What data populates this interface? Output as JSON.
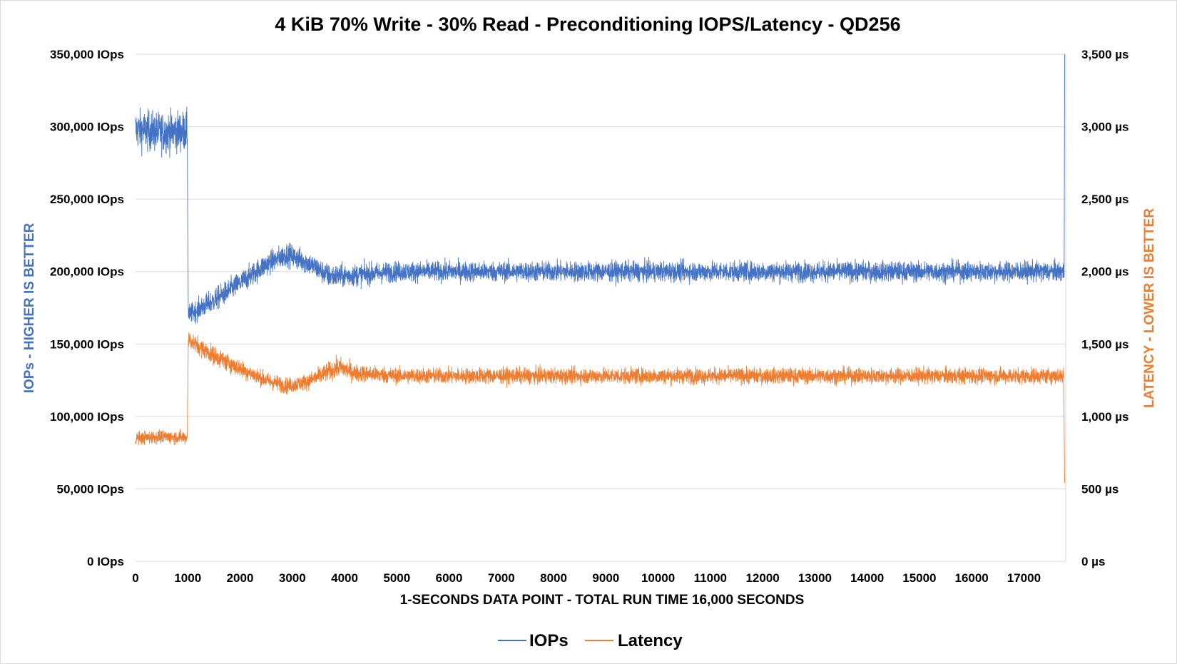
{
  "chart_data": {
    "type": "line",
    "title": "4 KiB 70% Write - 30% Read - Preconditioning IOPS/Latency - QD256",
    "xlabel": "1-SECONDS DATA POINT - TOTAL RUN TIME 16,000 SECONDS",
    "ylabel_left": "IOPs - HIGHER IS BETTER",
    "ylabel_right": "LATENCY - LOWER IS BETTER",
    "xlim": [
      0,
      17800
    ],
    "ylim_left": [
      0,
      350000
    ],
    "ylim_right": [
      0,
      3500
    ],
    "x_ticks": [
      0,
      1000,
      2000,
      3000,
      4000,
      5000,
      6000,
      7000,
      8000,
      9000,
      10000,
      11000,
      12000,
      13000,
      14000,
      15000,
      16000,
      17000
    ],
    "x_tick_labels": [
      "0",
      "1000",
      "2000",
      "3000",
      "4000",
      "5000",
      "6000",
      "7000",
      "8000",
      "9000",
      "10000",
      "11000",
      "12000",
      "13000",
      "14000",
      "15000",
      "16000",
      "17000"
    ],
    "y_left_ticks": [
      0,
      50000,
      100000,
      150000,
      200000,
      250000,
      300000,
      350000
    ],
    "y_left_tick_labels": [
      "0 IOps",
      "50,000 IOps",
      "100,000 IOps",
      "150,000 IOps",
      "200,000 IOps",
      "250,000 IOps",
      "300,000 IOps",
      "350,000 IOps"
    ],
    "y_right_ticks": [
      0,
      500,
      1000,
      1500,
      2000,
      2500,
      3000,
      3500
    ],
    "y_right_tick_labels": [
      "0 µs",
      "500 µs",
      "1,000 µs",
      "1,500 µs",
      "2,000 µs",
      "2,500 µs",
      "3,000 µs",
      "3,500 µs"
    ],
    "grid": true,
    "legend_position": "bottom",
    "series": [
      {
        "name": "IOPs",
        "axis": "left",
        "color": "#4472C4",
        "x": [
          0,
          500,
          990,
          1010,
          1500,
          2000,
          2500,
          2900,
          3300,
          3700,
          4000,
          5000,
          8000,
          12000,
          17000,
          17770,
          17780
        ],
        "mean": [
          298000,
          296000,
          297000,
          170000,
          180000,
          192000,
          205000,
          212000,
          206000,
          197000,
          197000,
          200000,
          200000,
          200000,
          200000,
          200000,
          350000
        ],
        "noise": [
          14000,
          14000,
          14000,
          7000,
          8000,
          8000,
          8000,
          8000,
          8000,
          8000,
          8000,
          7000,
          7000,
          7000,
          7000,
          7000,
          0
        ]
      },
      {
        "name": "Latency",
        "axis": "right",
        "color": "#ED7D31",
        "x": [
          0,
          500,
          990,
          1010,
          1500,
          2000,
          2500,
          2900,
          3300,
          3700,
          3900,
          4200,
          5000,
          8000,
          12000,
          17000,
          17760,
          17780
        ],
        "mean": [
          850,
          860,
          855,
          1530,
          1420,
          1330,
          1250,
          1210,
          1240,
          1310,
          1340,
          1300,
          1280,
          1280,
          1280,
          1280,
          1280,
          540
        ],
        "noise": [
          45,
          45,
          45,
          60,
          65,
          60,
          55,
          55,
          55,
          65,
          70,
          60,
          55,
          55,
          55,
          55,
          55,
          0
        ]
      }
    ]
  }
}
